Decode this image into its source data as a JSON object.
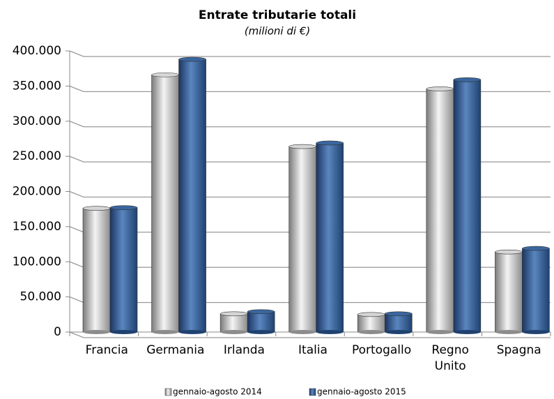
{
  "chart_data": {
    "type": "bar",
    "title": "Entrate tributarie totali",
    "subtitle": "(milioni di €)",
    "categories": [
      "Francia",
      "Germania",
      "Irlanda",
      "Italia",
      "Portogallo",
      "Regno Unito",
      "Spagna"
    ],
    "series": [
      {
        "name": "gennaio-agosto 2014",
        "color": "#c8c8c8",
        "values": [
          176000,
          366000,
          26000,
          264000,
          25000,
          346000,
          114000
        ]
      },
      {
        "name": "gennaio-agosto 2015",
        "color": "#2f5c9a",
        "values": [
          177000,
          388000,
          29000,
          269000,
          26000,
          359000,
          119000
        ]
      }
    ],
    "ylim": [
      0,
      400000
    ],
    "yticks": [
      0,
      {
        "value": 50000,
        "label": "50.000"
      },
      {
        "value": 100000,
        "label": "100.000"
      },
      {
        "value": 150000,
        "label": "150.000"
      },
      {
        "value": 200000,
        "label": "200.000"
      },
      {
        "value": 250000,
        "label": "250.000"
      },
      {
        "value": 300000,
        "label": "300.000"
      },
      {
        "value": 350000,
        "label": "350.000"
      },
      {
        "value": 400000,
        "label": "400.000"
      }
    ],
    "grid": true,
    "legend": "bottom"
  }
}
